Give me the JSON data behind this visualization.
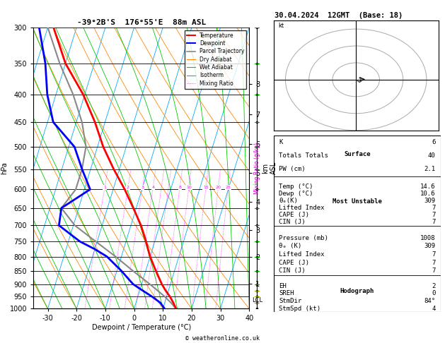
{
  "title_left": "-39°2B'S  176°55'E  88m ASL",
  "title_right": "30.04.2024  12GMT  (Base: 18)",
  "xlabel": "Dewpoint / Temperature (°C)",
  "ylabel_left": "hPa",
  "pressure_levels": [
    300,
    350,
    400,
    450,
    500,
    550,
    600,
    650,
    700,
    750,
    800,
    850,
    900,
    950,
    1000
  ],
  "xmin": -35,
  "xmax": 40,
  "pressure_min": 300,
  "pressure_max": 1000,
  "temp_profile_p": [
    1000,
    975,
    950,
    925,
    900,
    850,
    800,
    775,
    750,
    700,
    650,
    600,
    550,
    500,
    450,
    400,
    350,
    300
  ],
  "temp_profile_t": [
    14.6,
    13.0,
    11.2,
    9.0,
    7.0,
    3.5,
    0.0,
    -1.5,
    -3.0,
    -6.5,
    -11.0,
    -16.0,
    -22.0,
    -28.0,
    -33.5,
    -40.5,
    -50.0,
    -58.0
  ],
  "dewp_profile_p": [
    1000,
    975,
    950,
    925,
    900,
    850,
    800,
    775,
    750,
    700,
    650,
    600,
    550,
    500,
    450,
    400,
    350,
    300
  ],
  "dewp_profile_t": [
    10.6,
    8.5,
    5.0,
    1.0,
    -3.0,
    -8.5,
    -15.0,
    -20.0,
    -26.0,
    -35.0,
    -36.0,
    -28.0,
    -33.0,
    -38.0,
    -48.0,
    -53.0,
    -57.0,
    -63.0
  ],
  "parcel_profile_p": [
    1000,
    975,
    950,
    925,
    900,
    850,
    800,
    750,
    700,
    650,
    600,
    550,
    500,
    450,
    400,
    350,
    300
  ],
  "parcel_profile_t": [
    14.6,
    12.2,
    9.4,
    6.2,
    2.8,
    -4.5,
    -12.0,
    -20.5,
    -29.5,
    -36.0,
    -33.0,
    -33.0,
    -34.0,
    -38.0,
    -44.0,
    -52.0,
    -60.0
  ],
  "km_labels": [
    1,
    2,
    3,
    4,
    5,
    6,
    7,
    8
  ],
  "km_pressures": [
    899,
    802,
    714,
    633,
    560,
    494,
    435,
    382
  ],
  "lcl_pressure": 965,
  "bg_color": "#ffffff",
  "isotherm_color": "#00aaff",
  "dryadiabat_color": "#ff8800",
  "wetadiabat_color": "#00cc00",
  "mixingratio_color": "#ff00ff",
  "temp_color": "#ff0000",
  "dewp_color": "#0000ff",
  "parcel_color": "#888888",
  "wind_barb_levels_p": [
    1000,
    975,
    950,
    925,
    900,
    850,
    800,
    750,
    700,
    650,
    600,
    550,
    500,
    450,
    400,
    350,
    300
  ],
  "wind_colors_by_level": [
    "#aaaa00",
    "#aaaa00",
    "#aaaa00",
    "#aaaa00",
    "#00aa00",
    "#00aa00",
    "#00aa00",
    "#00aa00",
    "#00aa00",
    "#00aa00",
    "#00aa00",
    "#00aa00",
    "#00aa00",
    "#00aa00",
    "#00aa00",
    "#00aa00",
    "#00aa00"
  ],
  "hodo_u": [
    0.5,
    1.0,
    1.5,
    2.0,
    2.5,
    2.0,
    1.5
  ],
  "hodo_v": [
    -0.5,
    -1.0,
    -1.5,
    -1.0,
    -0.5,
    0.5,
    1.0
  ],
  "sm_u": 3.8,
  "sm_v": 0.2,
  "stats": {
    "K": 6,
    "TT": 40,
    "PW": 2.1,
    "surf_temp": 14.6,
    "surf_dewp": 10.6,
    "surf_theta_e": 309,
    "surf_li": 7,
    "surf_cape": 7,
    "surf_cin": 7,
    "mu_pressure": 1008,
    "mu_theta_e": 309,
    "mu_li": 7,
    "mu_cape": 7,
    "mu_cin": 7,
    "EH": 2,
    "SREH": 0,
    "StmDir": "84°",
    "StmSpd": 4
  }
}
